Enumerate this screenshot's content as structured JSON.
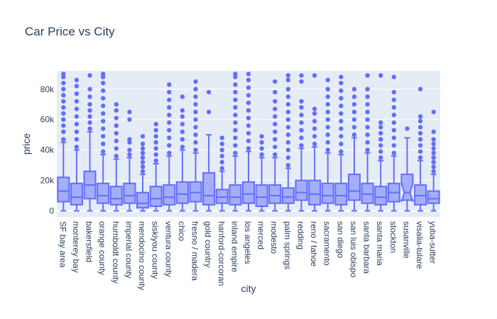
{
  "chart_data": {
    "type": "box",
    "title": "Car Price vs City",
    "xlabel": "city",
    "ylabel": "price",
    "ylim": [
      -4000,
      92000
    ],
    "yticks": [
      0,
      20000,
      40000,
      60000,
      80000
    ],
    "ytick_labels": [
      "0",
      "20k",
      "40k",
      "60k",
      "80k"
    ],
    "grid": true,
    "colors": {
      "box": "#636efa",
      "plot_bg": "#e5ecf6",
      "grid": "#ffffff",
      "text": "#2a3f5f"
    },
    "categories": [
      "SF bay area",
      "monterey bay",
      "bakersfield",
      "orange county",
      "humboldt county",
      "imperial county",
      "mendocino county",
      "siskiyou county",
      "ventura county",
      "chico",
      "fresno / madera",
      "gold country",
      "hanford-corcoran",
      "inland empire",
      "los angeles",
      "merced",
      "modesto",
      "palm springs",
      "redding",
      "reno / tahoe",
      "sacramento",
      "san diego",
      "san luis obispo",
      "santa barbara",
      "santa maria",
      "stockton",
      "susanville",
      "visalia-tulare",
      "yuba-sutter"
    ],
    "boxes": [
      {
        "min": 0,
        "q1": 6000,
        "median": 13000,
        "q3": 22000,
        "max": 45000,
        "outliers": [
          47000,
          52000,
          56000,
          60000,
          64000,
          68000,
          72000,
          76000,
          80000,
          84000,
          88000,
          90000
        ]
      },
      {
        "min": 0,
        "q1": 4000,
        "median": 9000,
        "q3": 18000,
        "max": 40000,
        "outliers": [
          42000,
          47000,
          52000,
          57000,
          62000,
          67000,
          72000,
          77000,
          82000,
          86000
        ]
      },
      {
        "min": 0,
        "q1": 8000,
        "median": 17000,
        "q3": 26000,
        "max": 52000,
        "outliers": [
          54000,
          58000,
          62000,
          66000,
          70000,
          75000,
          80000,
          89000
        ]
      },
      {
        "min": 0,
        "q1": 5000,
        "median": 10000,
        "q3": 18000,
        "max": 37000,
        "outliers": [
          39000,
          44000,
          49000,
          54000,
          59000,
          64000,
          69000,
          74000,
          79000,
          84000,
          88000,
          90000
        ]
      },
      {
        "min": 0,
        "q1": 4000,
        "median": 8000,
        "q3": 16000,
        "max": 34000,
        "outliers": [
          36000,
          41000,
          46000,
          51000,
          56000,
          61000,
          66000,
          70000
        ]
      },
      {
        "min": 0,
        "q1": 5000,
        "median": 10000,
        "q3": 18000,
        "max": 35000,
        "outliers": [
          37000,
          40000,
          45000,
          47000,
          60000,
          65000
        ]
      },
      {
        "min": 0,
        "q1": 2000,
        "median": 5000,
        "q3": 12000,
        "max": 24000,
        "outliers": [
          26000,
          29000,
          32000,
          35000,
          38000,
          41000,
          44000,
          49000
        ]
      },
      {
        "min": 0,
        "q1": 3000,
        "median": 8000,
        "q3": 16000,
        "max": 31000,
        "outliers": [
          33000,
          37000,
          41000,
          45000,
          49000,
          53000,
          57000
        ]
      },
      {
        "min": 0,
        "q1": 4000,
        "median": 9000,
        "q3": 17000,
        "max": 36000,
        "outliers": [
          38000,
          43000,
          48000,
          53000,
          58000,
          63000,
          68000,
          73000,
          78000,
          83000
        ]
      },
      {
        "min": 0,
        "q1": 5000,
        "median": 11000,
        "q3": 19000,
        "max": 40000,
        "outliers": [
          42000,
          47000,
          52000,
          57000,
          62000,
          66000,
          75000
        ]
      },
      {
        "min": 0,
        "q1": 6000,
        "median": 12000,
        "q3": 19000,
        "max": 38000,
        "outliers": [
          40000,
          45000,
          50000,
          55000,
          60000,
          65000,
          70000,
          75000,
          80000,
          85000
        ]
      },
      {
        "min": 0,
        "q1": 4000,
        "median": 10000,
        "q3": 25000,
        "max": 50000,
        "outliers": [
          65000,
          78000
        ]
      },
      {
        "min": 0,
        "q1": 5000,
        "median": 9000,
        "q3": 14000,
        "max": 26000,
        "outliers": [
          28000,
          32000,
          36000,
          40000,
          44000,
          48000
        ]
      },
      {
        "min": 0,
        "q1": 4000,
        "median": 9000,
        "q3": 17000,
        "max": 36000,
        "outliers": [
          38000,
          43000,
          48000,
          53000,
          58000,
          63000,
          68000,
          73000,
          78000,
          83000,
          88000,
          90000
        ]
      },
      {
        "min": 0,
        "q1": 5000,
        "median": 11000,
        "q3": 19000,
        "max": 39000,
        "outliers": [
          41000,
          46000,
          51000,
          56000,
          61000,
          66000,
          71000,
          76000,
          81000,
          86000,
          90000
        ]
      },
      {
        "min": 0,
        "q1": 3000,
        "median": 9000,
        "q3": 17000,
        "max": 35000,
        "outliers": [
          37000,
          41000,
          45000,
          49000
        ]
      },
      {
        "min": 0,
        "q1": 5000,
        "median": 10000,
        "q3": 17000,
        "max": 35000,
        "outliers": [
          37000,
          42000,
          47000,
          52000,
          57000,
          62000,
          67000,
          72000,
          78000,
          85000
        ]
      },
      {
        "min": 0,
        "q1": 5000,
        "median": 9000,
        "q3": 15000,
        "max": 28000,
        "outliers": [
          30000,
          35000,
          40000,
          45000,
          50000,
          55000,
          60000,
          65000,
          70000,
          75000,
          80000,
          86000,
          89000
        ]
      },
      {
        "min": 0,
        "q1": 7000,
        "median": 12000,
        "q3": 20000,
        "max": 41000,
        "outliers": [
          43000,
          48000,
          53000,
          58000,
          63000,
          68000,
          72000,
          85000,
          89000
        ]
      },
      {
        "min": 0,
        "q1": 4000,
        "median": 11000,
        "q3": 20000,
        "max": 42000,
        "outliers": [
          44000,
          49000,
          54000,
          59000,
          64000,
          67000,
          89000
        ]
      },
      {
        "min": 0,
        "q1": 5000,
        "median": 10000,
        "q3": 18000,
        "max": 38000,
        "outliers": [
          40000,
          45000,
          50000,
          55000,
          60000,
          65000,
          70000,
          75000,
          80000,
          86000
        ]
      },
      {
        "min": 0,
        "q1": 4000,
        "median": 10000,
        "q3": 18000,
        "max": 37000,
        "outliers": [
          39000,
          44000,
          49000,
          54000,
          59000,
          64000,
          69000,
          74000,
          79000,
          84000,
          88000
        ]
      },
      {
        "min": 0,
        "q1": 7000,
        "median": 13000,
        "q3": 24000,
        "max": 48000,
        "outliers": [
          50000,
          55000,
          60000,
          65000,
          70000,
          75000,
          80000
        ]
      },
      {
        "min": 0,
        "q1": 5000,
        "median": 11000,
        "q3": 18000,
        "max": 38000,
        "outliers": [
          40000,
          45000,
          50000,
          55000,
          60000,
          65000,
          70000,
          75000,
          80000,
          89000
        ]
      },
      {
        "min": 0,
        "q1": 4000,
        "median": 9000,
        "q3": 16000,
        "max": 33000,
        "outliers": [
          35000,
          39000,
          43000,
          47000,
          51000,
          55000,
          58000,
          89000
        ]
      },
      {
        "min": 0,
        "q1": 6000,
        "median": 12000,
        "q3": 18000,
        "max": 36000,
        "outliers": [
          38000,
          43000,
          48000,
          53000,
          58000,
          63000,
          68000,
          73000,
          78000,
          88000
        ]
      },
      {
        "min": 0,
        "q1": 7000,
        "median": 12000,
        "q3": 24000,
        "max": 48000,
        "outliers": [
          54000
        ],
        "notched": true
      },
      {
        "min": 0,
        "q1": 4000,
        "median": 10000,
        "q3": 17000,
        "max": 33000,
        "outliers": [
          35000,
          39000,
          43000,
          47000,
          51000,
          55000,
          59000,
          62000,
          80000
        ]
      },
      {
        "min": 0,
        "q1": 5000,
        "median": 8000,
        "q3": 13000,
        "max": 24000,
        "outliers": [
          26000,
          29000,
          32000,
          35000,
          38000,
          41000,
          44000,
          47000,
          52000,
          65000
        ]
      }
    ]
  }
}
